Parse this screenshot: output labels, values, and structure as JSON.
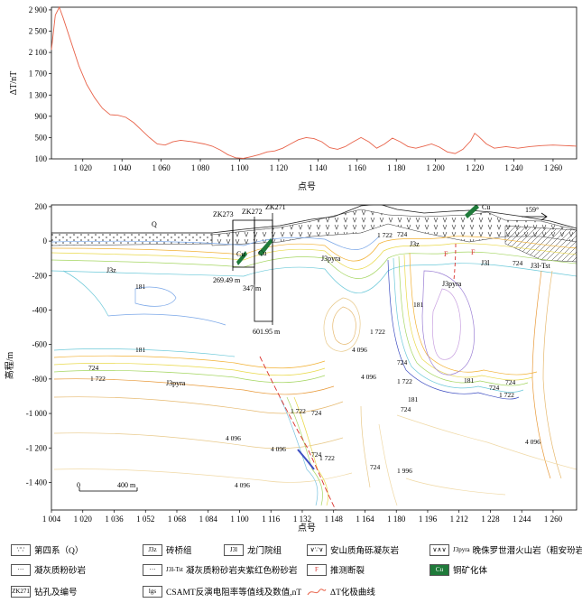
{
  "chart_data": [
    {
      "type": "line",
      "title": "",
      "xlabel": "点号",
      "ylabel": "ΔT/nT",
      "xlim": [
        1004,
        1272
      ],
      "ylim": [
        100,
        2950
      ],
      "xticks": [
        "1 020",
        "1 040",
        "1 060",
        "1 080",
        "1 100",
        "1 120",
        "1 140",
        "1 160",
        "1 180",
        "1 200",
        "1 220",
        "1 240",
        "1 260"
      ],
      "xtick_values": [
        1020,
        1040,
        1060,
        1080,
        1100,
        1120,
        1140,
        1160,
        1180,
        1200,
        1220,
        1240,
        1260
      ],
      "yticks": [
        "100",
        "500",
        "900",
        "1 300",
        "1 700",
        "2 100",
        "2 500",
        "2 900"
      ],
      "ytick_values": [
        100,
        500,
        900,
        1300,
        1700,
        2100,
        2500,
        2900
      ],
      "series": [
        {
          "name": "",
          "color": "#e8634a",
          "x": [
            1004,
            1006,
            1008,
            1010,
            1014,
            1018,
            1022,
            1026,
            1030,
            1034,
            1038,
            1042,
            1046,
            1050,
            1054,
            1058,
            1062,
            1066,
            1070,
            1076,
            1082,
            1086,
            1090,
            1094,
            1098,
            1102,
            1106,
            1110,
            1114,
            1118,
            1122,
            1126,
            1130,
            1134,
            1138,
            1142,
            1146,
            1150,
            1154,
            1158,
            1162,
            1166,
            1170,
            1174,
            1178,
            1182,
            1186,
            1190,
            1194,
            1198,
            1202,
            1206,
            1210,
            1214,
            1218,
            1220,
            1222,
            1226,
            1230,
            1236,
            1242,
            1248,
            1254,
            1260,
            1266,
            1272
          ],
          "y": [
            2150,
            2800,
            2950,
            2750,
            2300,
            1850,
            1500,
            1250,
            1050,
            930,
            920,
            880,
            780,
            640,
            500,
            380,
            360,
            420,
            450,
            420,
            380,
            340,
            270,
            180,
            120,
            110,
            140,
            180,
            230,
            250,
            300,
            380,
            460,
            500,
            480,
            420,
            310,
            280,
            330,
            420,
            500,
            420,
            300,
            380,
            490,
            420,
            330,
            300,
            340,
            380,
            320,
            230,
            200,
            280,
            440,
            580,
            520,
            380,
            300,
            330,
            300,
            330,
            350,
            360,
            350,
            340
          ]
        }
      ]
    },
    {
      "type": "heatmap",
      "title": "",
      "xlabel": "点号",
      "ylabel": "高程/m",
      "xlim": [
        1004,
        1272
      ],
      "ylim": [
        -1560,
        210
      ],
      "xticks": [
        "1 004",
        "1 020",
        "1 036",
        "1 052",
        "1 068",
        "1 084",
        "1 100",
        "1 116",
        "1 132",
        "1 148",
        "1 164",
        "1 180",
        "1 196",
        "1 212",
        "1 228",
        "1 244",
        "1 260"
      ],
      "xtick_values": [
        1004,
        1020,
        1036,
        1052,
        1068,
        1084,
        1100,
        1116,
        1132,
        1148,
        1164,
        1180,
        1196,
        1212,
        1228,
        1244,
        1260
      ],
      "yticks": [
        "200",
        "0",
        "-200",
        "-400",
        "-600",
        "-800",
        "-1 000",
        "-1 200",
        "-1 400"
      ],
      "ytick_values": [
        200,
        0,
        -200,
        -400,
        -600,
        -800,
        -1000,
        -1200,
        -1400
      ],
      "contour_labels": [
        "181",
        "724",
        "1 722",
        "4 096",
        "1 722",
        "724",
        "181",
        "724",
        "1 722",
        "724",
        "1 722",
        "724",
        "1 722",
        "724",
        "4 096",
        "724",
        "181",
        "724",
        "1 722",
        "4 096",
        "724",
        "1 996",
        "4 096",
        "4 096",
        "4 096",
        "1 722",
        "724",
        "181",
        "181"
      ],
      "annotations": {
        "quaternary": "Q",
        "cu_left": "Cu",
        "cu_mid": "Cu",
        "cu_right": "Cu",
        "bearing": "159°",
        "zk273": "ZK273",
        "zk272": "ZK272",
        "zk271": "ZK271",
        "depth1": "269.49 m",
        "depth2": "347 m",
        "depth3": "601.95 m",
        "unit_j3z_left": "J3z",
        "unit_j3z_right": "J3z",
        "unit_j3l": "J3l",
        "unit_j3l_tst": "J3l-Tst",
        "unit_j3pyra_top": "J3pyra",
        "unit_j3pyra_mid": "J3pyra",
        "unit_j3pyra_deep": "J3pyra",
        "fault_f1": "F",
        "fault_f2": "F",
        "scale_0": "0",
        "scale_400": "400 m"
      }
    }
  ],
  "legend": {
    "items": [
      {
        "label": "第四系（Q）",
        "swatch": "∵∵"
      },
      {
        "label": "砖桥组",
        "swatch": "J3z"
      },
      {
        "label": "龙门院组",
        "swatch": "J3l"
      },
      {
        "label": "安山质角砾凝灰岩",
        "swatch": "∨∵∨"
      },
      {
        "label": "晚侏罗世潜火山岩（粗安玢岩）",
        "swatch": "∨∧∨",
        "sub": "J3pyra"
      },
      {
        "label": "凝灰质粉砂岩",
        "swatch": "···"
      },
      {
        "label": "凝灰质粉砂岩夹紫红色粉砂岩",
        "swatch": "···",
        "sub": "J3l-Tst"
      },
      {
        "label": "推测断裂",
        "swatch": "F"
      },
      {
        "label": "铜矿化体",
        "swatch": "Cu"
      },
      {
        "label": "钻孔及编号",
        "swatch": "ZK271"
      },
      {
        "label": "CSAMT反演电阻率等值线及数值,nT",
        "swatch": "lgs"
      },
      {
        "label": "ΔT化极曲线",
        "swatch": ""
      }
    ]
  }
}
